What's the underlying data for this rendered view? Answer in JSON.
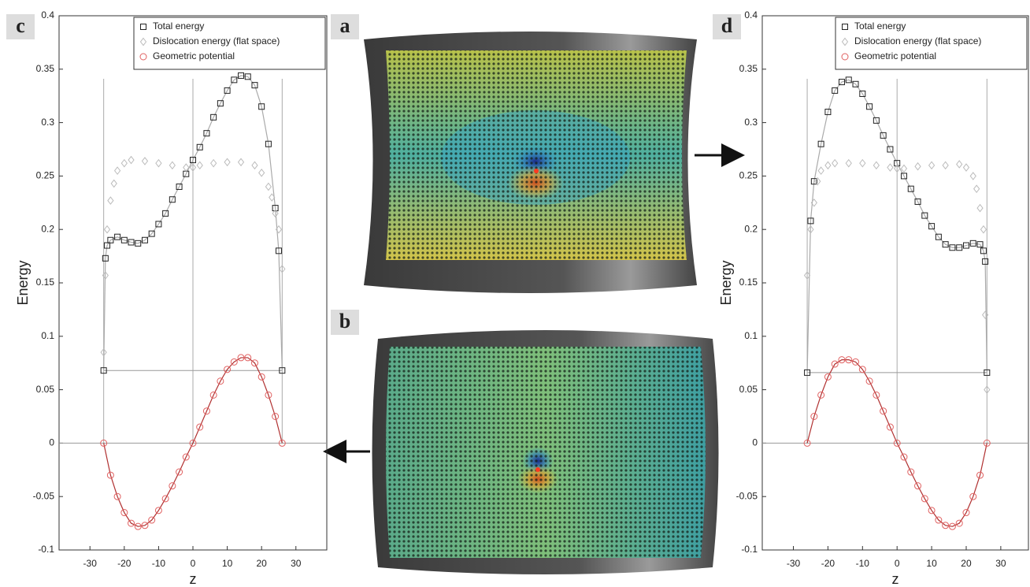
{
  "images": [
    {
      "label": "a"
    },
    {
      "label": "b"
    }
  ],
  "chart_data": [
    {
      "type": "line",
      "label": "c",
      "xlabel": "z",
      "ylabel": "Energy",
      "xlim": [
        -39,
        39
      ],
      "ylim": [
        -0.1,
        0.4
      ],
      "xticks": [
        -30,
        -20,
        -10,
        0,
        10,
        20,
        30
      ],
      "yticks": [
        -0.1,
        -0.05,
        0,
        0.05,
        0.1,
        0.15,
        0.2,
        0.25,
        0.3,
        0.35,
        0.4
      ],
      "vlines": [
        -26,
        0,
        26
      ],
      "hlines": [
        {
          "value": 0,
          "from": -39,
          "to": 39
        },
        {
          "value": 0.068,
          "from": -26,
          "to": 26
        }
      ],
      "legend": "upper right",
      "series": [
        {
          "name": "Total energy",
          "marker": "square",
          "color": "#222222",
          "line_color": "#aaaaaa",
          "x": [
            -26,
            -25.5,
            -25,
            -24,
            -22,
            -20,
            -18,
            -16,
            -14,
            -12,
            -10,
            -8,
            -6,
            -4,
            -2,
            0,
            2,
            4,
            6,
            8,
            10,
            12,
            14,
            16,
            18,
            20,
            22,
            24,
            25,
            26
          ],
          "values": [
            0.068,
            0.173,
            0.185,
            0.19,
            0.193,
            0.19,
            0.188,
            0.187,
            0.19,
            0.196,
            0.205,
            0.215,
            0.228,
            0.24,
            0.252,
            0.265,
            0.277,
            0.29,
            0.305,
            0.318,
            0.33,
            0.34,
            0.344,
            0.343,
            0.335,
            0.315,
            0.28,
            0.22,
            0.18,
            0.068
          ]
        },
        {
          "name": "Dislocation energy (flat space)",
          "marker": "diamond",
          "color": "#bbbbbb",
          "line_color": null,
          "x": [
            -26,
            -25.5,
            -25,
            -24,
            -23,
            -22,
            -20,
            -18,
            -14,
            -10,
            -6,
            -2,
            0,
            2,
            6,
            10,
            14,
            18,
            20,
            22,
            23,
            24,
            25,
            26
          ],
          "values": [
            0.085,
            0.157,
            0.2,
            0.227,
            0.243,
            0.255,
            0.262,
            0.265,
            0.264,
            0.262,
            0.26,
            0.258,
            0.258,
            0.26,
            0.262,
            0.263,
            0.263,
            0.26,
            0.253,
            0.24,
            0.23,
            0.215,
            0.2,
            0.163
          ]
        },
        {
          "name": "Geometric potential",
          "marker": "circle",
          "color": "#e06060",
          "line_color": "#b03030",
          "x": [
            -26,
            -24,
            -22,
            -20,
            -18,
            -16,
            -14,
            -12,
            -10,
            -8,
            -6,
            -4,
            -2,
            0,
            2,
            4,
            6,
            8,
            10,
            12,
            14,
            16,
            18,
            20,
            22,
            24,
            26
          ],
          "values": [
            0,
            -0.03,
            -0.05,
            -0.065,
            -0.075,
            -0.078,
            -0.077,
            -0.072,
            -0.063,
            -0.052,
            -0.04,
            -0.027,
            -0.013,
            0,
            0.015,
            0.03,
            0.045,
            0.058,
            0.069,
            0.076,
            0.08,
            0.08,
            0.075,
            0.062,
            0.045,
            0.025,
            0
          ]
        }
      ]
    },
    {
      "type": "line",
      "label": "d",
      "xlabel": "z",
      "ylabel": "Energy",
      "xlim": [
        -39,
        38
      ],
      "ylim": [
        -0.1,
        0.4
      ],
      "xticks": [
        -30,
        -20,
        -10,
        0,
        10,
        20,
        30
      ],
      "yticks": [
        -0.1,
        -0.05,
        0,
        0.05,
        0.1,
        0.15,
        0.2,
        0.25,
        0.3,
        0.35,
        0.4
      ],
      "vlines": [
        -26,
        0,
        26
      ],
      "hlines": [
        {
          "value": 0,
          "from": -39,
          "to": 38
        },
        {
          "value": 0.066,
          "from": -26,
          "to": 26
        }
      ],
      "legend": "upper right",
      "series": [
        {
          "name": "Total energy",
          "marker": "square",
          "color": "#222222",
          "line_color": "#aaaaaa",
          "x": [
            26,
            25.5,
            25,
            24,
            22,
            20,
            18,
            16,
            14,
            12,
            10,
            8,
            6,
            4,
            2,
            0,
            -2,
            -4,
            -6,
            -8,
            -10,
            -12,
            -14,
            -16,
            -18,
            -20,
            -22,
            -24,
            -25,
            -26
          ],
          "values": [
            0.066,
            0.17,
            0.18,
            0.186,
            0.187,
            0.185,
            0.183,
            0.183,
            0.186,
            0.193,
            0.203,
            0.213,
            0.226,
            0.238,
            0.25,
            0.262,
            0.275,
            0.288,
            0.302,
            0.315,
            0.327,
            0.336,
            0.34,
            0.338,
            0.33,
            0.31,
            0.28,
            0.245,
            0.208,
            0.066
          ]
        },
        {
          "name": "Dislocation energy (flat space)",
          "marker": "diamond",
          "color": "#bbbbbb",
          "line_color": null,
          "x": [
            26,
            25.5,
            25,
            24,
            23,
            22,
            20,
            18,
            14,
            10,
            6,
            2,
            0,
            -2,
            -6,
            -10,
            -14,
            -18,
            -20,
            -22,
            -23,
            -24,
            -25,
            -26
          ],
          "values": [
            0.05,
            0.12,
            0.2,
            0.22,
            0.238,
            0.25,
            0.258,
            0.261,
            0.26,
            0.26,
            0.259,
            0.257,
            0.257,
            0.258,
            0.26,
            0.262,
            0.262,
            0.262,
            0.26,
            0.255,
            0.245,
            0.225,
            0.2,
            0.157
          ]
        },
        {
          "name": "Geometric potential",
          "marker": "circle",
          "color": "#e06060",
          "line_color": "#b03030",
          "x": [
            26,
            24,
            22,
            20,
            18,
            16,
            14,
            12,
            10,
            8,
            6,
            4,
            2,
            0,
            -2,
            -4,
            -6,
            -8,
            -10,
            -12,
            -14,
            -16,
            -18,
            -20,
            -22,
            -24,
            -26
          ],
          "values": [
            0,
            -0.03,
            -0.05,
            -0.065,
            -0.075,
            -0.078,
            -0.077,
            -0.072,
            -0.063,
            -0.052,
            -0.04,
            -0.027,
            -0.013,
            0,
            0.015,
            0.03,
            0.045,
            0.058,
            0.069,
            0.076,
            0.078,
            0.078,
            0.074,
            0.062,
            0.045,
            0.025,
            0
          ]
        }
      ]
    }
  ]
}
